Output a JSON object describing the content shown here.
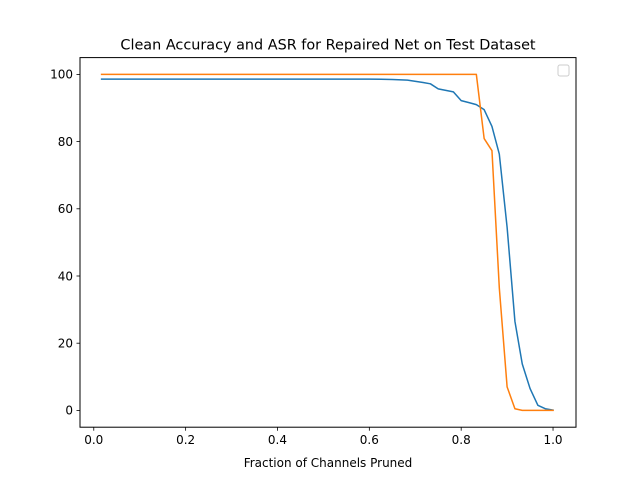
{
  "chart_data": {
    "type": "line",
    "title": "Clean Accuracy and ASR for Repaired Net on Test Dataset",
    "xlabel": "Fraction of Channels Pruned",
    "ylabel": "",
    "xlim": [
      -0.03,
      1.05
    ],
    "ylim": [
      -5,
      105
    ],
    "xticks": [
      0.0,
      0.2,
      0.4,
      0.6,
      0.8,
      1.0
    ],
    "xtick_labels": [
      "0.0",
      "0.2",
      "0.4",
      "0.6",
      "0.8",
      "1.0"
    ],
    "yticks": [
      0,
      20,
      40,
      60,
      80,
      100
    ],
    "ytick_labels": [
      "0",
      "20",
      "40",
      "60",
      "80",
      "100"
    ],
    "grid": false,
    "legend": {
      "location": "upper right",
      "entries": []
    },
    "series": [
      {
        "color": "#1f77b4",
        "x": [
          0.017,
          0.1,
          0.2,
          0.3,
          0.4,
          0.5,
          0.6,
          0.65,
          0.683,
          0.717,
          0.733,
          0.75,
          0.783,
          0.8,
          0.817,
          0.833,
          0.85,
          0.867,
          0.883,
          0.9,
          0.917,
          0.933,
          0.95,
          0.967,
          0.983,
          1.0
        ],
        "y": [
          98.6,
          98.6,
          98.6,
          98.6,
          98.6,
          98.6,
          98.6,
          98.5,
          98.3,
          97.6,
          97.2,
          95.7,
          94.8,
          92.2,
          91.6,
          91.0,
          89.5,
          84.5,
          76.3,
          54.5,
          26.5,
          13.8,
          6.5,
          1.5,
          0.5,
          0.1
        ]
      },
      {
        "color": "#ff7f0e",
        "x": [
          0.017,
          0.1,
          0.2,
          0.3,
          0.4,
          0.5,
          0.6,
          0.7,
          0.8,
          0.833,
          0.85,
          0.867,
          0.883,
          0.9,
          0.917,
          0.933,
          0.95,
          0.967,
          0.983,
          1.0
        ],
        "y": [
          100,
          100,
          100,
          100,
          100,
          100,
          100,
          100,
          100,
          100,
          80.9,
          77.3,
          36.5,
          7.0,
          0.5,
          0.0,
          0.0,
          0.0,
          0.0,
          0.0
        ]
      }
    ]
  }
}
